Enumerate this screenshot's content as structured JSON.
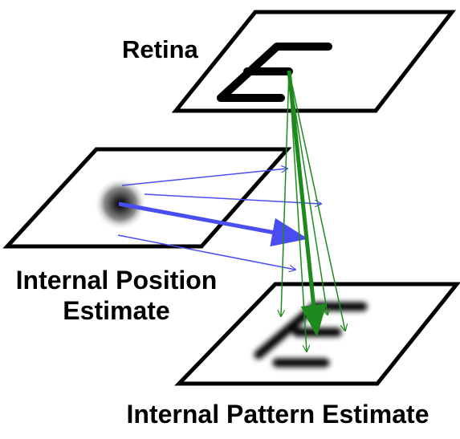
{
  "labels": {
    "retina": "Retina",
    "position_line1": "Internal Position",
    "position_line2": "Estimate",
    "pattern": "Internal Pattern Estimate"
  },
  "colors": {
    "plane_stroke": "#000000",
    "position_arrows": "#4a4ef0",
    "pattern_arrows": "#1e8a1e",
    "letter": "#000000"
  }
}
